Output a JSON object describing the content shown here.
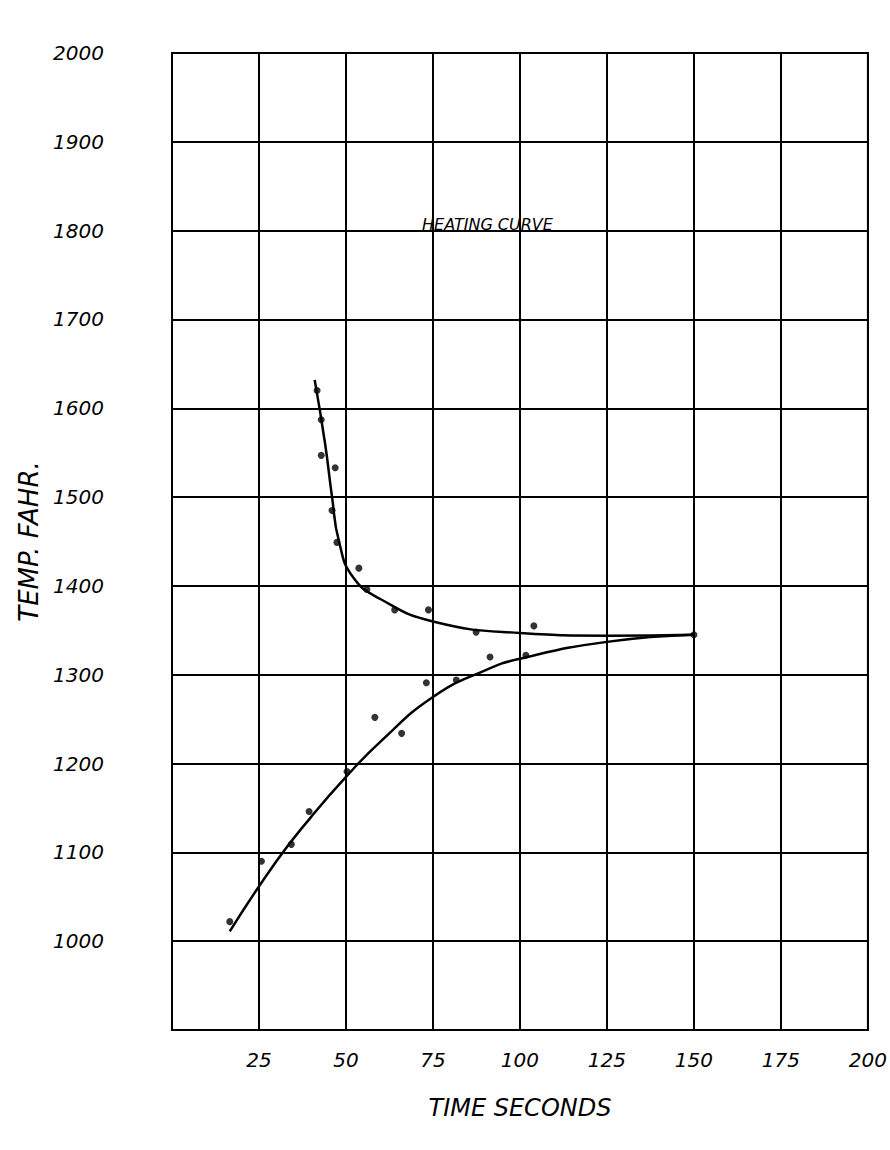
{
  "chart_data": {
    "type": "scatter",
    "annotations": [
      "HEATING CURVE"
    ],
    "x_label": "TIME SECONDS",
    "y_label": "TEMP. FAHR.",
    "xlim": [
      0,
      200
    ],
    "xticks": [
      25,
      50,
      75,
      100,
      125,
      150,
      175,
      200
    ],
    "ylim": [
      900,
      2000
    ],
    "yticks": [
      1000,
      1100,
      1200,
      1300,
      1400,
      1500,
      1600,
      1700,
      1800,
      1900,
      2000
    ],
    "grid": true,
    "color": "#000000",
    "series": [
      {
        "type": "scatter",
        "marker": "circle",
        "x": [
          16.6,
          25.7,
          34.3,
          39.4,
          50.3,
          58.3,
          66,
          73.1,
          81.7,
          91.4,
          101.7,
          150
        ],
        "values": [
          1022,
          1090,
          1109,
          1146,
          1191,
          1252,
          1234,
          1291,
          1294,
          1320,
          1322,
          1345
        ]
      },
      {
        "type": "scatter",
        "marker": "circle",
        "x": [
          41.7,
          42.9,
          42.9,
          46.9,
          46,
          47.4,
          53.7,
          56,
          64,
          73.7,
          87.4,
          104
        ],
        "values": [
          1620,
          1587,
          1547,
          1533,
          1485,
          1449,
          1420,
          1396,
          1373,
          1373,
          1348,
          1355
        ]
      },
      {
        "type": "line",
        "line_style": "solid",
        "x": [
          16.6,
          30,
          40,
          50,
          60,
          75,
          90,
          100,
          125,
          150
        ],
        "values": [
          1011,
          1090,
          1140,
          1185,
          1225,
          1275,
          1305,
          1318,
          1337,
          1345
        ]
      },
      {
        "type": "line",
        "line_style": "solid",
        "x": [
          41,
          44,
          46,
          48,
          52,
          60,
          75,
          100,
          125,
          150
        ],
        "values": [
          1632,
          1560,
          1500,
          1450,
          1410,
          1385,
          1360,
          1347,
          1344,
          1345
        ]
      }
    ]
  }
}
